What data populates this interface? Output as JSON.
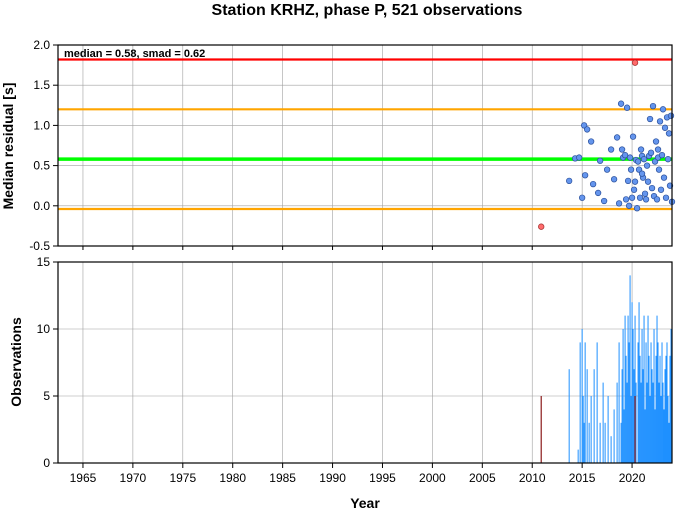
{
  "chart_data": [
    {
      "type": "scatter",
      "title": "Station KRHZ, phase P, 521 observations",
      "annotation": "median = 0.58, smad = 0.62",
      "ylabel": "Median residual [s]",
      "xlim": [
        1962.5,
        2024
      ],
      "ylim": [
        -0.5,
        2.0
      ],
      "yticks": [
        "-0.5",
        "0.0",
        "0.5",
        "1.0",
        "1.5",
        "2.0"
      ],
      "grid": true,
      "reference_lines": [
        {
          "y": 1.82,
          "color": "#ff0000"
        },
        {
          "y": 1.2,
          "color": "#ffa500"
        },
        {
          "y": 0.58,
          "color": "#00ff00"
        },
        {
          "y": -0.04,
          "color": "#ffa500"
        }
      ],
      "points_color": "#6495ed",
      "outlier_color": "#ff6b6b",
      "points": [
        [
          2013.7,
          0.31
        ],
        [
          2014.3,
          0.59
        ],
        [
          2014.7,
          0.6
        ],
        [
          2015.0,
          0.1
        ],
        [
          2015.2,
          1.0
        ],
        [
          2015.3,
          0.38
        ],
        [
          2015.5,
          0.95
        ],
        [
          2015.9,
          0.8
        ],
        [
          2016.1,
          0.27
        ],
        [
          2016.6,
          0.16
        ],
        [
          2016.8,
          0.56
        ],
        [
          2017.2,
          0.06
        ],
        [
          2017.5,
          0.45
        ],
        [
          2017.9,
          0.7
        ],
        [
          2018.2,
          0.33
        ],
        [
          2018.5,
          0.85
        ],
        [
          2018.7,
          0.03
        ],
        [
          2018.9,
          1.27
        ],
        [
          2019.0,
          0.7
        ],
        [
          2019.1,
          0.6
        ],
        [
          2019.3,
          0.63
        ],
        [
          2019.4,
          0.08
        ],
        [
          2019.5,
          1.22
        ],
        [
          2019.6,
          0.31
        ],
        [
          2019.7,
          0.0
        ],
        [
          2019.8,
          0.6
        ],
        [
          2019.9,
          0.45
        ],
        [
          2020.0,
          0.1
        ],
        [
          2020.1,
          0.86
        ],
        [
          2020.3,
          0.3
        ],
        [
          2020.4,
          0.57
        ],
        [
          2020.5,
          -0.03
        ],
        [
          2020.6,
          0.55
        ],
        [
          2020.7,
          0.45
        ],
        [
          2020.8,
          0.1
        ],
        [
          2020.9,
          0.7
        ],
        [
          2021.0,
          0.62
        ],
        [
          2021.1,
          0.35
        ],
        [
          2021.2,
          0.58
        ],
        [
          2021.3,
          0.15
        ],
        [
          2021.4,
          0.08
        ],
        [
          2021.5,
          0.5
        ],
        [
          2021.6,
          0.3
        ],
        [
          2021.7,
          0.62
        ],
        [
          2021.8,
          1.08
        ],
        [
          2021.9,
          0.66
        ],
        [
          2022.0,
          0.22
        ],
        [
          2022.1,
          1.24
        ],
        [
          2022.2,
          0.12
        ],
        [
          2022.3,
          0.55
        ],
        [
          2022.4,
          0.8
        ],
        [
          2022.5,
          0.08
        ],
        [
          2022.6,
          0.6
        ],
        [
          2022.7,
          0.45
        ],
        [
          2022.8,
          1.05
        ],
        [
          2022.9,
          0.2
        ],
        [
          2023.0,
          0.63
        ],
        [
          2023.1,
          1.2
        ],
        [
          2023.2,
          0.35
        ],
        [
          2023.3,
          0.97
        ],
        [
          2023.4,
          0.1
        ],
        [
          2023.5,
          1.1
        ],
        [
          2023.6,
          0.58
        ],
        [
          2023.7,
          0.9
        ],
        [
          2023.8,
          0.25
        ],
        [
          2023.9,
          1.12
        ],
        [
          2024.0,
          0.05
        ],
        [
          2021.0,
          0.4
        ],
        [
          2022.6,
          0.7
        ],
        [
          2020.2,
          0.2
        ]
      ],
      "outliers": [
        [
          2010.9,
          -0.26
        ],
        [
          2020.3,
          1.78
        ]
      ]
    },
    {
      "type": "bar",
      "xlabel": "Year",
      "ylabel": "Observations",
      "xlim": [
        1962.5,
        2024
      ],
      "ylim": [
        0,
        15
      ],
      "xticks": [
        "1965",
        "1970",
        "1975",
        "1980",
        "1985",
        "1990",
        "1995",
        "2000",
        "2005",
        "2010",
        "2015",
        "2020"
      ],
      "yticks": [
        "0",
        "5",
        "10",
        "15"
      ],
      "grid": true,
      "bar_color": "#1e90ff",
      "outlier_bar_color": "#8b1a1a",
      "bars": [
        [
          2013.7,
          7
        ],
        [
          2014.6,
          1
        ],
        [
          2014.8,
          9
        ],
        [
          2015.0,
          10
        ],
        [
          2015.1,
          5
        ],
        [
          2015.2,
          3
        ],
        [
          2015.3,
          9
        ],
        [
          2015.5,
          7
        ],
        [
          2015.7,
          3
        ],
        [
          2015.9,
          5
        ],
        [
          2016.2,
          7
        ],
        [
          2016.5,
          9
        ],
        [
          2016.8,
          3
        ],
        [
          2017.1,
          6
        ],
        [
          2017.3,
          3
        ],
        [
          2017.6,
          5
        ],
        [
          2017.9,
          2
        ],
        [
          2018.2,
          4
        ],
        [
          2018.5,
          6
        ],
        [
          2018.7,
          9
        ],
        [
          2018.9,
          3
        ],
        [
          2019.0,
          7
        ],
        [
          2019.1,
          10
        ],
        [
          2019.2,
          4
        ],
        [
          2019.3,
          11
        ],
        [
          2019.4,
          8
        ],
        [
          2019.5,
          6
        ],
        [
          2019.6,
          11
        ],
        [
          2019.7,
          9
        ],
        [
          2019.8,
          14
        ],
        [
          2019.9,
          5
        ],
        [
          2020.0,
          12
        ],
        [
          2020.1,
          10
        ],
        [
          2020.2,
          7
        ],
        [
          2020.3,
          11
        ],
        [
          2020.4,
          6
        ],
        [
          2020.6,
          9
        ],
        [
          2020.7,
          12
        ],
        [
          2020.8,
          8
        ],
        [
          2020.9,
          6
        ],
        [
          2021.0,
          10
        ],
        [
          2021.1,
          7
        ],
        [
          2021.2,
          11
        ],
        [
          2021.3,
          4
        ],
        [
          2021.4,
          9
        ],
        [
          2021.5,
          6
        ],
        [
          2021.6,
          11
        ],
        [
          2021.7,
          8
        ],
        [
          2021.8,
          5
        ],
        [
          2021.9,
          9
        ],
        [
          2022.0,
          7
        ],
        [
          2022.1,
          6
        ],
        [
          2022.2,
          10
        ],
        [
          2022.3,
          4
        ],
        [
          2022.4,
          8
        ],
        [
          2022.5,
          11
        ],
        [
          2022.6,
          9
        ],
        [
          2022.7,
          6
        ],
        [
          2022.8,
          8
        ],
        [
          2022.9,
          5
        ],
        [
          2023.0,
          9
        ],
        [
          2023.1,
          6
        ],
        [
          2023.2,
          4
        ],
        [
          2023.3,
          7
        ],
        [
          2023.4,
          8
        ],
        [
          2023.5,
          9
        ],
        [
          2023.6,
          5
        ],
        [
          2023.7,
          3
        ],
        [
          2023.8,
          8
        ],
        [
          2023.9,
          10
        ],
        [
          2024.0,
          6
        ]
      ],
      "outlier_bars": [
        [
          2010.9,
          5
        ],
        [
          2020.3,
          5
        ]
      ]
    }
  ]
}
